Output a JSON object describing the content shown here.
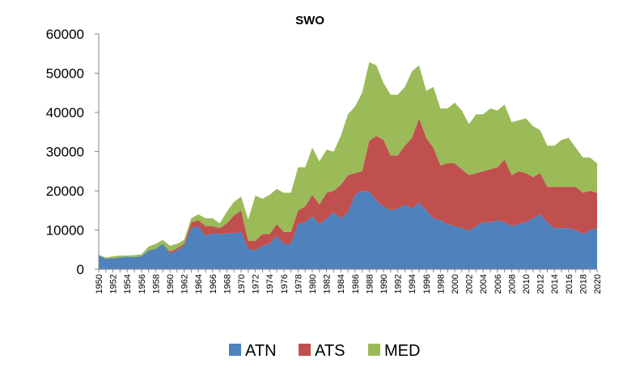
{
  "chart_data": {
    "type": "area",
    "stacked": true,
    "title": "SWO",
    "xlabel": "",
    "ylabel": "",
    "ylim": [
      0,
      60000
    ],
    "yticks": [
      "0",
      "10000",
      "20000",
      "30000",
      "40000",
      "50000",
      "60000"
    ],
    "grid": false,
    "legend_position": "bottom",
    "x": [
      1950,
      1951,
      1952,
      1953,
      1954,
      1955,
      1956,
      1957,
      1958,
      1959,
      1960,
      1961,
      1962,
      1963,
      1964,
      1965,
      1966,
      1967,
      1968,
      1969,
      1970,
      1971,
      1972,
      1973,
      1974,
      1975,
      1976,
      1977,
      1978,
      1979,
      1980,
      1981,
      1982,
      1983,
      1984,
      1985,
      1986,
      1987,
      1988,
      1989,
      1990,
      1991,
      1992,
      1993,
      1994,
      1995,
      1996,
      1997,
      1998,
      1999,
      2000,
      2001,
      2002,
      2003,
      2004,
      2005,
      2006,
      2007,
      2008,
      2009,
      2010,
      2011,
      2012,
      2013,
      2014,
      2015,
      2016,
      2017,
      2018,
      2019,
      2020
    ],
    "xtick_labels": [
      "1950",
      "1952",
      "1954",
      "1956",
      "1958",
      "1960",
      "1962",
      "1964",
      "1966",
      "1968",
      "1970",
      "1972",
      "1974",
      "1976",
      "1978",
      "1980",
      "1982",
      "1984",
      "1986",
      "1988",
      "1990",
      "1992",
      "1994",
      "1996",
      "1998",
      "2000",
      "2002",
      "2004",
      "2006",
      "2008",
      "2010",
      "2012",
      "2014",
      "2016",
      "2018",
      "2020"
    ],
    "series": [
      {
        "name": "ATN",
        "color": "#4f81bd",
        "values": [
          3500,
          2700,
          2800,
          3000,
          3200,
          3100,
          3300,
          4800,
          5200,
          6500,
          4000,
          4800,
          6000,
          10500,
          11000,
          8500,
          9200,
          9000,
          9200,
          9200,
          9500,
          5200,
          4800,
          6000,
          6500,
          8500,
          6500,
          6500,
          11500,
          12000,
          13500,
          11500,
          13000,
          14500,
          13000,
          14500,
          19000,
          20000,
          19800,
          17500,
          16000,
          15000,
          15500,
          16500,
          15500,
          17000,
          15000,
          13000,
          12500,
          11500,
          11000,
          10500,
          9800,
          11000,
          12000,
          12000,
          12500,
          12000,
          11000,
          11500,
          12000,
          13000,
          14000,
          12000,
          10500,
          10500,
          10500,
          10000,
          9000,
          10000,
          10500
        ]
      },
      {
        "name": "ATS",
        "color": "#c0504d",
        "values": [
          0,
          0,
          0,
          0,
          0,
          0,
          0,
          0,
          0,
          0,
          500,
          500,
          500,
          1500,
          1500,
          2500,
          1800,
          1500,
          2500,
          4500,
          5500,
          2000,
          2500,
          3000,
          2500,
          3000,
          3000,
          3000,
          3500,
          4000,
          5500,
          5000,
          6500,
          5500,
          8500,
          9500,
          5500,
          5000,
          13000,
          16500,
          17000,
          14000,
          13500,
          15000,
          18000,
          21500,
          18500,
          18000,
          14000,
          15500,
          16000,
          15000,
          14200,
          13500,
          13000,
          13500,
          13500,
          16000,
          13000,
          13500,
          12500,
          10500,
          10500,
          9000,
          10500,
          10500,
          10500,
          11000,
          10500,
          10000,
          9000
        ]
      },
      {
        "name": "MED",
        "color": "#9bbb59",
        "values": [
          200,
          300,
          500,
          500,
          300,
          500,
          500,
          1000,
          1300,
          1000,
          1500,
          1200,
          1000,
          1000,
          1500,
          2000,
          2000,
          1200,
          3000,
          3500,
          3500,
          5500,
          11500,
          9000,
          10000,
          9000,
          10000,
          10000,
          11000,
          10000,
          12000,
          11000,
          11000,
          10000,
          12500,
          15500,
          17000,
          20000,
          20000,
          18000,
          14500,
          15500,
          15500,
          15000,
          17000,
          13500,
          12000,
          15500,
          14500,
          14000,
          15500,
          15000,
          13000,
          15000,
          14500,
          15500,
          14500,
          14000,
          13500,
          13000,
          14000,
          13000,
          11000,
          10500,
          10500,
          12000,
          12500,
          10000,
          9000,
          8500,
          7500
        ]
      }
    ]
  }
}
